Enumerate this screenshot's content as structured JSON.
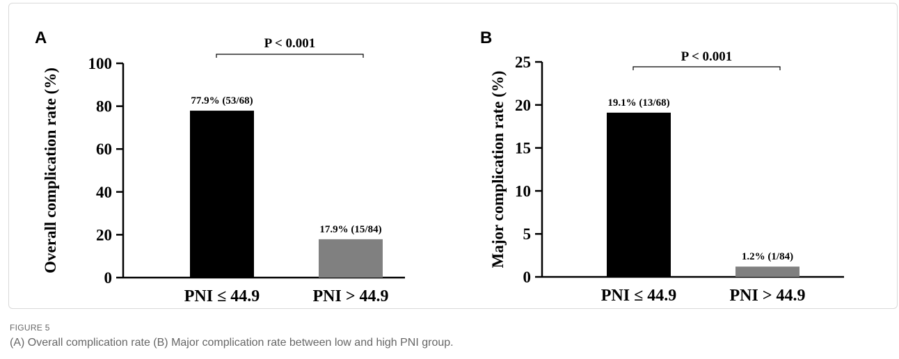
{
  "chart_data": [
    {
      "type": "bar",
      "panel_label": "A",
      "categories": [
        "PNI ≤ 44.9",
        "PNI > 44.9"
      ],
      "values": [
        77.9,
        17.9
      ],
      "data_labels": [
        "77.9% (53/68)",
        "17.9% (15/84)"
      ],
      "bar_colors": [
        "#000000",
        "#808080"
      ],
      "ylabel": "Overall complication rate (%)",
      "xlabel": "",
      "ylim": [
        0,
        100
      ],
      "yticks": [
        0,
        20,
        40,
        60,
        80,
        100
      ],
      "significance": "P < 0.001",
      "grid": false
    },
    {
      "type": "bar",
      "panel_label": "B",
      "categories": [
        "PNI ≤ 44.9",
        "PNI > 44.9"
      ],
      "values": [
        19.1,
        1.2
      ],
      "data_labels": [
        "19.1% (13/68)",
        "1.2% (1/84)"
      ],
      "bar_colors": [
        "#000000",
        "#808080"
      ],
      "ylabel": "Major complication rate (%)",
      "xlabel": "",
      "ylim": [
        0,
        25
      ],
      "yticks": [
        0,
        5,
        10,
        15,
        20,
        25
      ],
      "significance": "P < 0.001",
      "grid": false
    }
  ],
  "caption": {
    "label": "FIGURE 5",
    "text": "(A) Overall complication rate (B) Major complication rate between low and high PNI group."
  }
}
